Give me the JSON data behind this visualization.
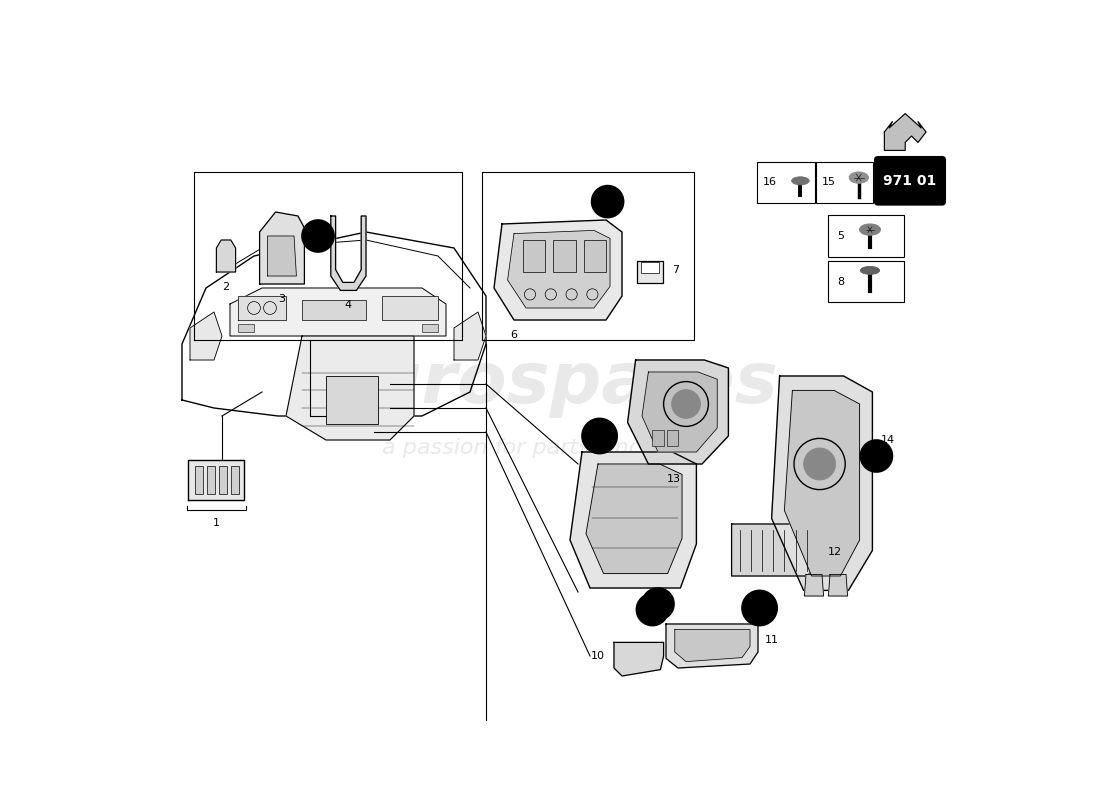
{
  "title": "",
  "bg_color": "#ffffff",
  "part_number": "971 01",
  "watermark_line1": "eurospares",
  "watermark_line2": "a passion for parts since 1985"
}
